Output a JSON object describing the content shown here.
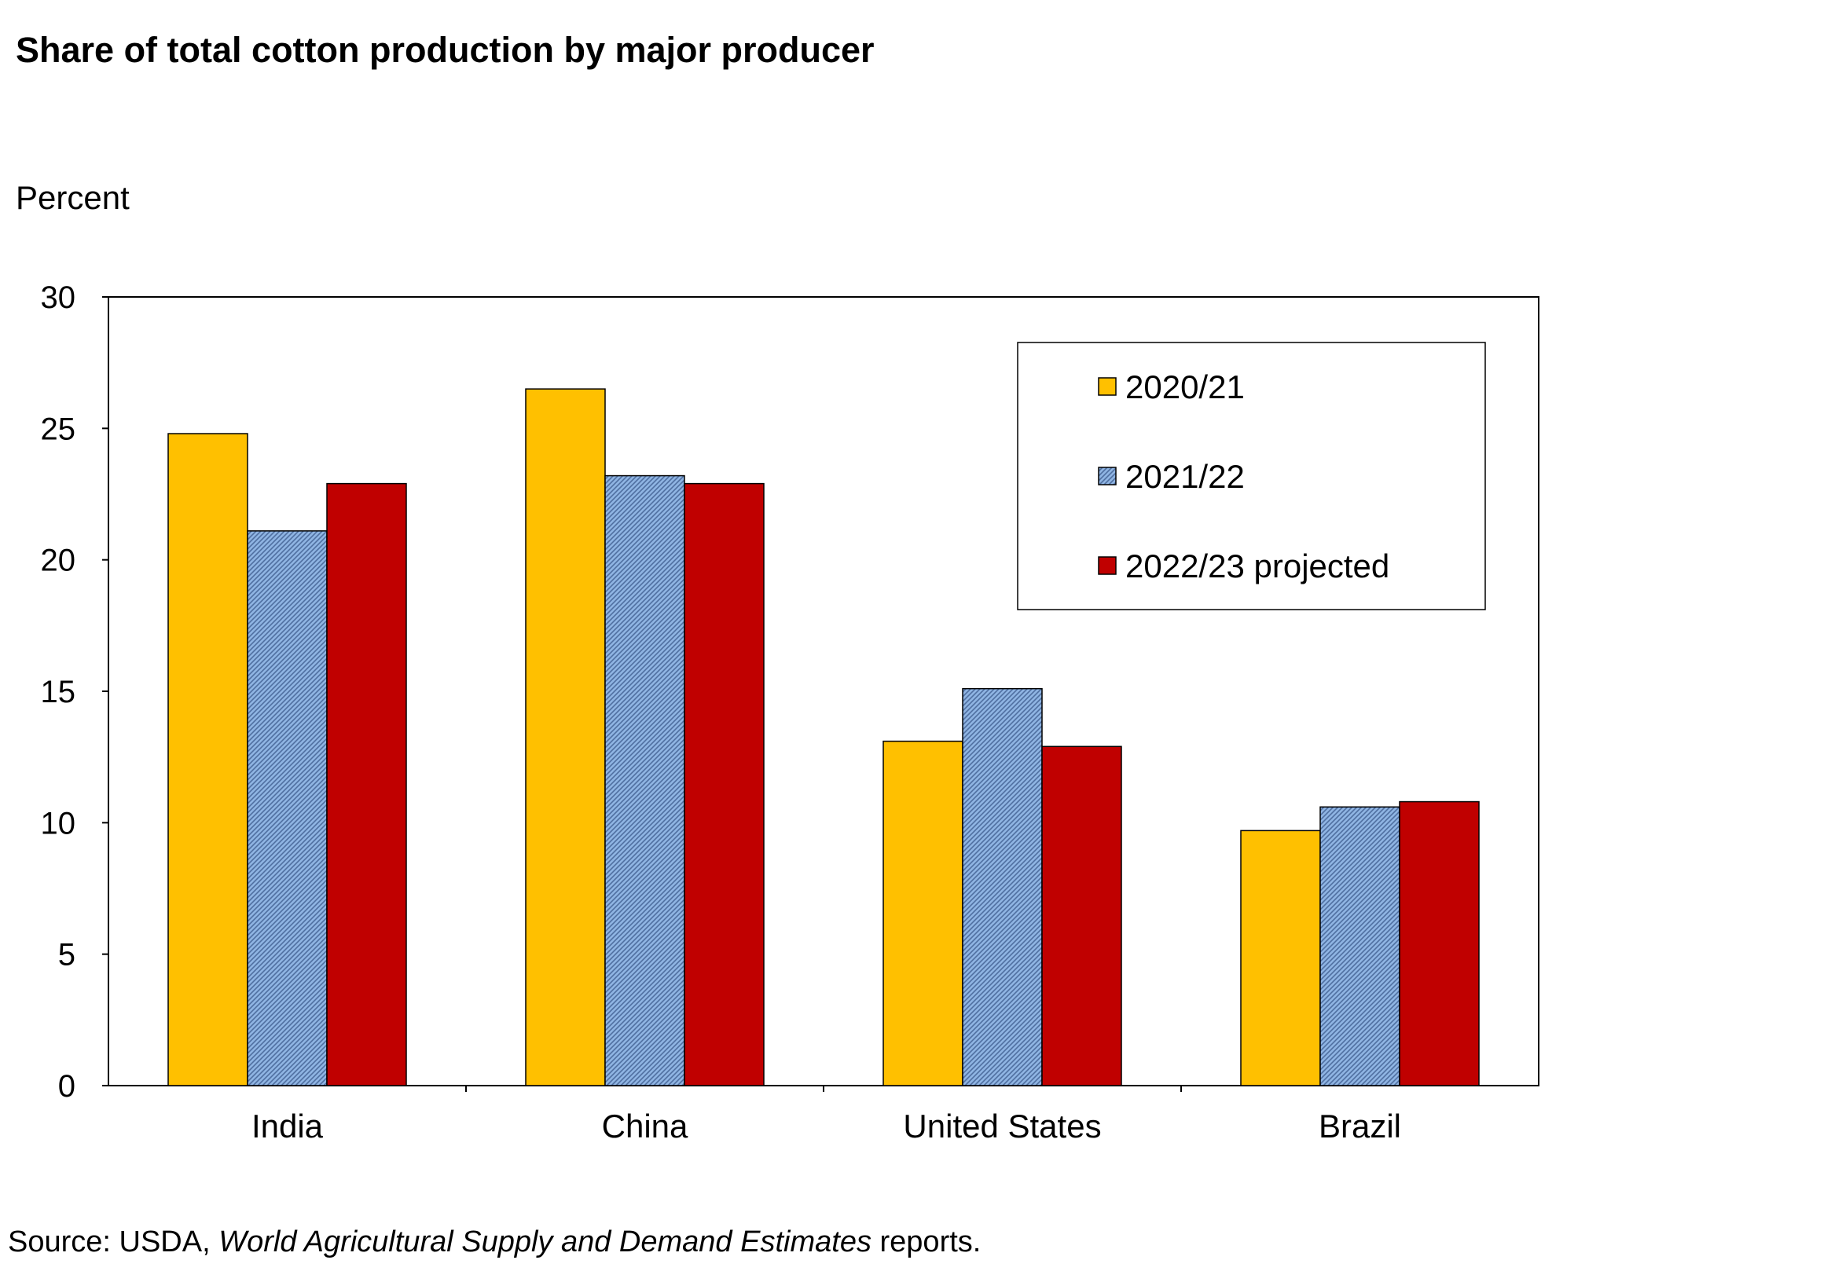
{
  "chart_data": {
    "type": "bar",
    "title": "Share of total cotton production by major producer",
    "ylabel": "Percent",
    "xlabel": "",
    "ylim": [
      0,
      30
    ],
    "yticks": [
      0,
      5,
      10,
      15,
      20,
      25,
      30
    ],
    "categories": [
      "India",
      "China",
      "United States",
      "Brazil"
    ],
    "series": [
      {
        "name": "2020/21",
        "color": "#FFC000",
        "pattern": "solid",
        "values": [
          24.8,
          26.5,
          13.1,
          9.7
        ]
      },
      {
        "name": "2021/22",
        "color": "#8FB4E3",
        "pattern": "hatched",
        "values": [
          21.1,
          23.2,
          15.1,
          10.6
        ]
      },
      {
        "name": "2022/23 projected",
        "color": "#C00000",
        "pattern": "solid",
        "values": [
          22.9,
          22.9,
          12.9,
          10.8
        ]
      }
    ],
    "legend_position": "top-right",
    "grid": false
  },
  "source": {
    "prefix": "Source: USDA, ",
    "italic": "World Agricultural Supply and Demand Estimates",
    "suffix": " reports."
  }
}
